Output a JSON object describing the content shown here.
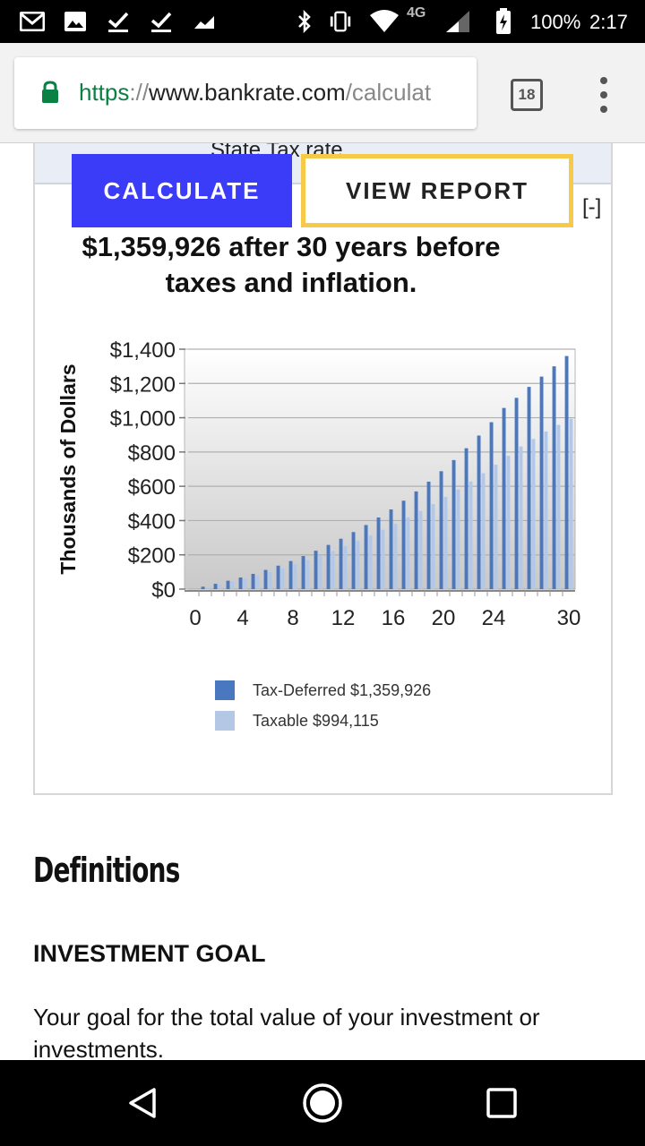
{
  "status_bar": {
    "network": "4G",
    "battery_percent": "100%",
    "time": "2:17",
    "icons": [
      "gmail-icon",
      "photos-icon",
      "check-icon",
      "check-icon",
      "trend-icon",
      "bluetooth-icon",
      "vibrate-icon",
      "wifi-icon",
      "signal-icon",
      "battery-charging-icon"
    ]
  },
  "browser": {
    "url_scheme": "https",
    "url_sep": "://",
    "url_host": "www.bankrate.com",
    "url_path": "/calculat",
    "tab_count": "18"
  },
  "panel": {
    "header_text": "State Tax rate",
    "calculate_label": "CALCULATE",
    "view_report_label": "VIEW REPORT",
    "collapse_label": "[-]",
    "headline_line1": "$1,359,926 after 30 years before",
    "headline_line2": "taxes and inflation."
  },
  "chart_data": {
    "type": "bar",
    "ylabel": "Thousands of Dollars",
    "xlabel": "",
    "ylim": [
      0,
      1400
    ],
    "yticks": [
      0,
      200,
      400,
      600,
      800,
      1000,
      1200,
      1400
    ],
    "ytick_labels": [
      "$0",
      "$200",
      "$400",
      "$600",
      "$800",
      "$1,000",
      "$1,200",
      "$1,400"
    ],
    "xticks": [
      0,
      4,
      8,
      12,
      16,
      20,
      24,
      30
    ],
    "grid": true,
    "legend_placement": "bottom",
    "categories": [
      1,
      2,
      3,
      4,
      5,
      6,
      7,
      8,
      9,
      10,
      11,
      12,
      13,
      14,
      15,
      16,
      17,
      18,
      19,
      20,
      21,
      22,
      23,
      24,
      25,
      26,
      27,
      28,
      29,
      30
    ],
    "series": [
      {
        "name": "Tax-Deferred $1,359,926",
        "color": "#4a78c0",
        "values": [
          14,
          31,
          49,
          68,
          89,
          112,
          137,
          164,
          193,
          224,
          258,
          294,
          333,
          374,
          418,
          465,
          516,
          570,
          627,
          688,
          753,
          822,
          896,
          974,
          1057,
          1116,
          1180,
          1240,
          1300,
          1360
        ]
      },
      {
        "name": "Taxable $994,115",
        "color": "#b4c8e6",
        "values": [
          13,
          28,
          44,
          62,
          81,
          101,
          122,
          145,
          169,
          195,
          222,
          251,
          281,
          313,
          346,
          381,
          418,
          456,
          496,
          538,
          582,
          628,
          676,
          726,
          778,
          832,
          876,
          920,
          958,
          994
        ]
      }
    ]
  },
  "definitions": {
    "title": "Definitions",
    "term": "INVESTMENT GOAL",
    "text": "Your goal for the total value of your investment or investments."
  }
}
